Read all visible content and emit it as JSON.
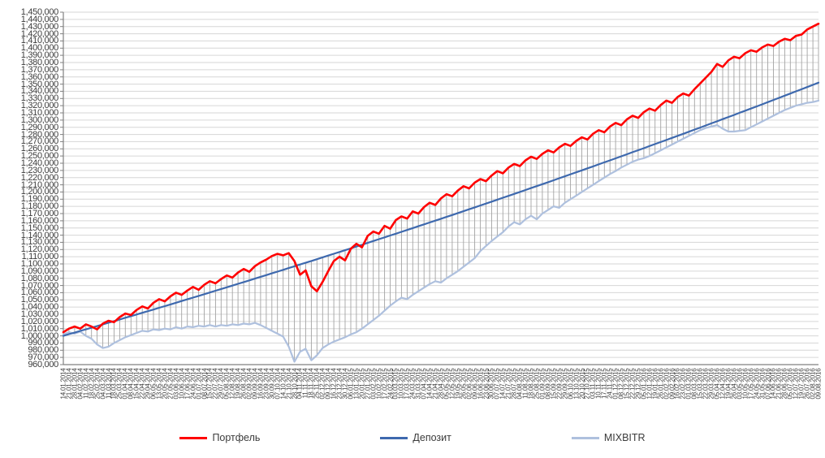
{
  "chart_data": {
    "type": "line",
    "title": "",
    "xlabel": "",
    "ylabel": "",
    "legend_position": "bottom",
    "grid": true,
    "high_low_lines": true,
    "x_label_rotation": 90,
    "y_axis": {
      "min": 960000,
      "max": 1450000,
      "step": 10000
    },
    "y_tick_labels": [
      "1,450,000",
      "1,440,000",
      "1,430,000",
      "1,420,000",
      "1,410,000",
      "1,400,000",
      "1,390,000",
      "1,380,000",
      "1,370,000",
      "1,360,000",
      "1,350,000",
      "1,340,000",
      "1,330,000",
      "1,320,000",
      "1,310,000",
      "1,300,000",
      "1,290,000",
      "1,280,000",
      "1,270,000",
      "1,260,000",
      "1,250,000",
      "1,240,000",
      "1,230,000",
      "1,220,000",
      "1,210,000",
      "1,200,000",
      "1,190,000",
      "1,180,000",
      "1,170,000",
      "1,160,000",
      "1,150,000",
      "1,140,000",
      "1,130,000",
      "1,120,000",
      "1,110,000",
      "1,100,000",
      "1,090,000",
      "1,080,000",
      "1,070,000",
      "1,060,000",
      "1,050,000",
      "1,040,000",
      "1,030,000",
      "1,020,000",
      "1,010,000",
      "1,000,000",
      "990,000",
      "980,000",
      "970,000",
      "960,000"
    ],
    "colors": {
      "gridline": "#d6d6d6",
      "high_low": "#a3a3a3",
      "axis": "#808080",
      "labels": "#3b3b3b"
    },
    "layout": {
      "plot_left": 78,
      "plot_right": 1008,
      "plot_top": 15,
      "plot_bottom": 449
    },
    "x_labels": [
      "14.01.2014",
      "21.01.2014",
      "28.01.2014",
      "04.02.2014",
      "11.02.2014",
      "18.02.2014",
      "25.02.2014",
      "04.03.2014",
      "11.03.2014",
      "18.03.2014",
      "25.03.2014",
      "01.04.2014",
      "08.04.2014",
      "15.04.2014",
      "22.04.2014",
      "29.04.2014",
      "06.05.2014",
      "13.05.2014",
      "20.05.2014",
      "27.05.2014",
      "03.06.2014",
      "10.06.2014",
      "17.06.2014",
      "24.06.2014",
      "01.07.2014",
      "08.07.2014",
      "15.07.2014",
      "22.07.2014",
      "29.07.2014",
      "05.08.2014",
      "12.08.2014",
      "19.08.2014",
      "26.08.2014",
      "02.09.2014",
      "09.09.2014",
      "16.09.2014",
      "23.09.2014",
      "30.09.2014",
      "07.10.2014",
      "14.10.2014",
      "21.10.2014",
      "28.10.2014",
      "04.11.2014",
      "11.11.2014",
      "18.11.2014",
      "25.11.2014",
      "02.12.2014",
      "09.12.2014",
      "16.12.2014",
      "23.12.2014",
      "30.12.2014",
      "06.01.2015",
      "13.01.2015",
      "20.01.2015",
      "27.01.2015",
      "03.02.2015",
      "10.02.2015",
      "17.02.2015",
      "24.02.2015",
      "03.03.2015",
      "10.03.2015",
      "17.03.2015",
      "24.03.2015",
      "31.03.2015",
      "07.04.2015",
      "14.04.2015",
      "21.04.2015",
      "28.04.2015",
      "05.05.2015",
      "12.05.2015",
      "19.05.2015",
      "26.05.2015",
      "02.06.2015",
      "09.06.2015",
      "16.06.2015",
      "23.06.2015",
      "30.06.2015",
      "07.07.2015",
      "14.07.2015",
      "21.07.2015",
      "28.07.2015",
      "04.08.2015",
      "11.08.2015",
      "18.08.2015",
      "25.08.2015",
      "01.09.2015",
      "08.09.2015",
      "15.09.2015",
      "22.09.2015",
      "29.09.2015",
      "06.10.2015",
      "13.10.2015",
      "20.10.2015",
      "27.10.2015",
      "03.11.2015",
      "10.11.2015",
      "17.11.2015",
      "24.11.2015",
      "01.12.2015",
      "08.12.2015",
      "15.12.2015",
      "22.12.2015",
      "29.12.2015",
      "05.01.2016",
      "12.01.2016",
      "19.01.2016",
      "26.01.2016",
      "02.02.2016",
      "09.02.2016",
      "16.02.2016",
      "23.02.2016",
      "01.03.2016",
      "08.03.2016",
      "15.03.2016",
      "22.03.2016",
      "29.03.2016",
      "05.04.2016",
      "12.04.2016",
      "19.04.2016",
      "26.04.2016",
      "03.05.2016",
      "10.05.2016",
      "17.05.2016",
      "24.05.2016",
      "31.05.2016",
      "07.06.2016",
      "14.06.2016",
      "21.06.2016",
      "28.06.2016",
      "05.07.2016",
      "12.07.2016",
      "19.07.2016",
      "26.07.2016",
      "02.08.2016",
      "09.08.2016"
    ],
    "series": [
      {
        "name": "Портфель",
        "color": "#ff0000",
        "stroke_width": 2.6,
        "values": [
          1005000,
          1010000,
          1013000,
          1010000,
          1016000,
          1013000,
          1009000,
          1017000,
          1021000,
          1019000,
          1026000,
          1031000,
          1029000,
          1036000,
          1041000,
          1038000,
          1046000,
          1051000,
          1048000,
          1055000,
          1060000,
          1057000,
          1063000,
          1068000,
          1064000,
          1071000,
          1076000,
          1073000,
          1079000,
          1084000,
          1081000,
          1088000,
          1093000,
          1089000,
          1097000,
          1102000,
          1106000,
          1111000,
          1114000,
          1112000,
          1115000,
          1104000,
          1085000,
          1091000,
          1069000,
          1062000,
          1075000,
          1090000,
          1104000,
          1110000,
          1105000,
          1121000,
          1128000,
          1123000,
          1139000,
          1145000,
          1142000,
          1153000,
          1149000,
          1161000,
          1166000,
          1163000,
          1173000,
          1170000,
          1179000,
          1185000,
          1182000,
          1191000,
          1197000,
          1194000,
          1202000,
          1208000,
          1205000,
          1213000,
          1218000,
          1215000,
          1223000,
          1229000,
          1226000,
          1234000,
          1239000,
          1236000,
          1244000,
          1249000,
          1246000,
          1253000,
          1258000,
          1255000,
          1262000,
          1267000,
          1264000,
          1271000,
          1276000,
          1273000,
          1281000,
          1286000,
          1283000,
          1291000,
          1296000,
          1293000,
          1301000,
          1306000,
          1303000,
          1311000,
          1316000,
          1313000,
          1321000,
          1327000,
          1324000,
          1332000,
          1337000,
          1334000,
          1343000,
          1351000,
          1359000,
          1367000,
          1378000,
          1374000,
          1383000,
          1388000,
          1386000,
          1393000,
          1397000,
          1395000,
          1401000,
          1405000,
          1403000,
          1409000,
          1413000,
          1411000,
          1417000,
          1419000,
          1426000,
          1430000,
          1434000
        ]
      },
      {
        "name": "Депозит",
        "color": "#3e69ae",
        "stroke_width": 2.2,
        "values": [
          1000000,
          1002300,
          1004500,
          1006800,
          1009000,
          1011300,
          1013600,
          1015900,
          1018200,
          1020500,
          1022800,
          1025100,
          1027400,
          1029700,
          1032000,
          1034300,
          1036600,
          1039000,
          1041300,
          1043700,
          1046000,
          1048400,
          1050800,
          1053100,
          1055500,
          1057900,
          1060300,
          1062700,
          1065100,
          1067500,
          1069900,
          1072300,
          1074700,
          1077100,
          1079600,
          1082000,
          1084400,
          1086900,
          1089300,
          1091800,
          1094200,
          1096700,
          1099200,
          1101600,
          1104100,
          1106600,
          1109100,
          1111600,
          1114100,
          1116600,
          1119100,
          1121600,
          1124200,
          1126700,
          1129200,
          1131800,
          1134400,
          1136900,
          1139500,
          1142000,
          1144600,
          1147200,
          1149800,
          1152400,
          1155000,
          1157600,
          1160200,
          1162800,
          1165400,
          1168000,
          1170700,
          1173300,
          1176000,
          1178600,
          1181300,
          1183900,
          1186600,
          1189300,
          1192000,
          1194600,
          1197300,
          1200000,
          1202700,
          1205400,
          1208200,
          1210900,
          1213600,
          1216300,
          1219100,
          1221800,
          1224600,
          1227300,
          1230100,
          1232900,
          1235600,
          1238400,
          1241200,
          1244000,
          1246800,
          1249600,
          1252400,
          1255300,
          1258100,
          1260900,
          1263800,
          1266600,
          1269500,
          1272300,
          1275200,
          1278000,
          1280900,
          1283800,
          1286700,
          1289600,
          1292500,
          1295400,
          1298300,
          1301300,
          1304200,
          1307100,
          1310100,
          1313000,
          1316000,
          1318900,
          1321900,
          1324900,
          1327900,
          1330900,
          1333900,
          1336900,
          1339900,
          1342900,
          1345900,
          1349000,
          1352000
        ]
      },
      {
        "name": "MIXBITR",
        "color": "#aec0de",
        "stroke_width": 2.2,
        "values": [
          1002000,
          1005000,
          1003000,
          1006000,
          1000000,
          996000,
          988000,
          983000,
          985000,
          990000,
          994000,
          998000,
          1001000,
          1004000,
          1007000,
          1006000,
          1009000,
          1008000,
          1010000,
          1009000,
          1012000,
          1010000,
          1013000,
          1012000,
          1014000,
          1013000,
          1015000,
          1013000,
          1015000,
          1014000,
          1016000,
          1015000,
          1017000,
          1016000,
          1018000,
          1015000,
          1011000,
          1007000,
          1003000,
          999000,
          985000,
          964000,
          978000,
          982000,
          966000,
          973000,
          983000,
          988000,
          992000,
          995000,
          998000,
          1002000,
          1005000,
          1010000,
          1016000,
          1022000,
          1028000,
          1035000,
          1042000,
          1048000,
          1053000,
          1051000,
          1057000,
          1062000,
          1067000,
          1072000,
          1076000,
          1074000,
          1080000,
          1085000,
          1090000,
          1096000,
          1102000,
          1108000,
          1118000,
          1125000,
          1132000,
          1138000,
          1144000,
          1152000,
          1158000,
          1155000,
          1162000,
          1167000,
          1162000,
          1170000,
          1175000,
          1180000,
          1178000,
          1185000,
          1190000,
          1195000,
          1200000,
          1205000,
          1210000,
          1215000,
          1220000,
          1225000,
          1229000,
          1234000,
          1238000,
          1242000,
          1245000,
          1247000,
          1250000,
          1254000,
          1258000,
          1262000,
          1266000,
          1270000,
          1274000,
          1278000,
          1282000,
          1286000,
          1289000,
          1291000,
          1293000,
          1288000,
          1284000,
          1284000,
          1285000,
          1286000,
          1290000,
          1294000,
          1298000,
          1302000,
          1306000,
          1310000,
          1314000,
          1317000,
          1320000,
          1322000,
          1324000,
          1325000,
          1327000
        ]
      }
    ]
  }
}
